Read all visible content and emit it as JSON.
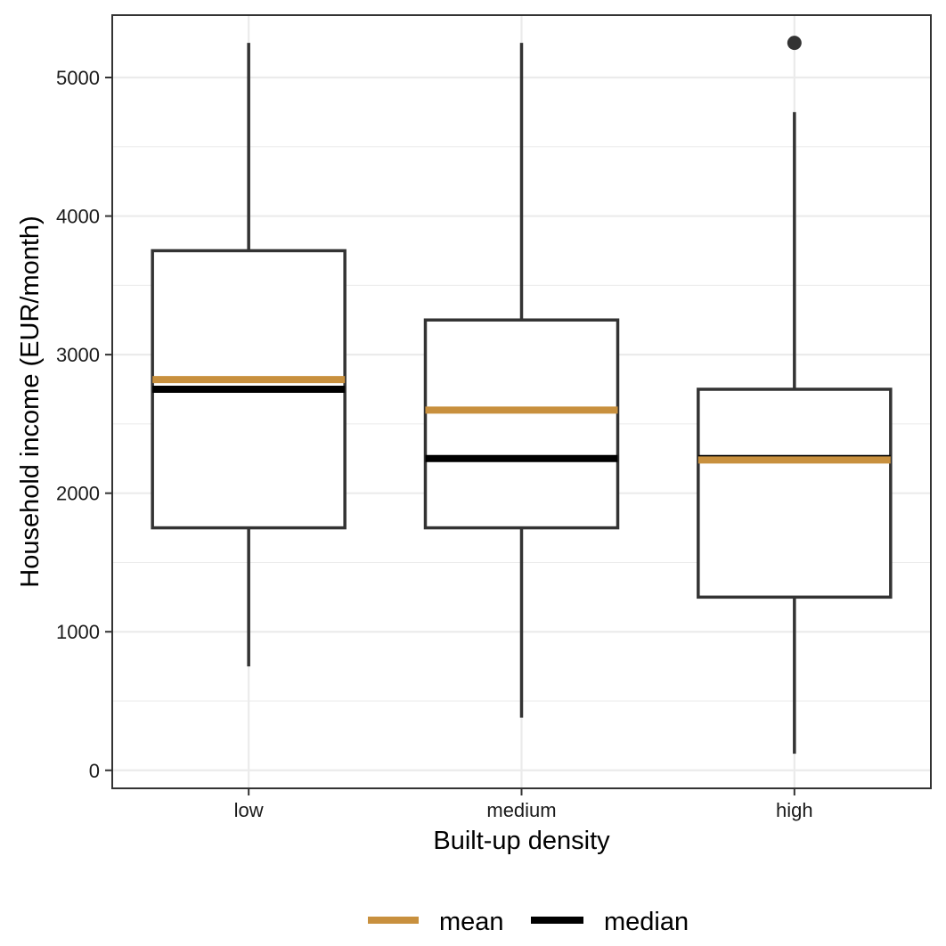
{
  "chart_data": {
    "type": "box",
    "xlabel": "Built-up density",
    "ylabel": "Household income (EUR/month)",
    "categories": [
      "low",
      "medium",
      "high"
    ],
    "ylim": [
      -130,
      5450
    ],
    "y_ticks": [
      0,
      1000,
      2000,
      3000,
      4000,
      5000
    ],
    "grid": true,
    "legend_position": "bottom",
    "boxes": [
      {
        "category": "low",
        "whisker_low": 750,
        "q1": 1750,
        "median": 2750,
        "q3": 3750,
        "whisker_high": 5250,
        "mean": 2820,
        "outliers": []
      },
      {
        "category": "medium",
        "whisker_low": 380,
        "q1": 1750,
        "median": 2250,
        "q3": 3250,
        "whisker_high": 5250,
        "mean": 2600,
        "outliers": []
      },
      {
        "category": "high",
        "whisker_low": 120,
        "q1": 1250,
        "median": 2250,
        "q3": 2750,
        "whisker_high": 4750,
        "mean": 2240,
        "outliers": [
          5250
        ]
      }
    ],
    "legend": [
      {
        "key": "mean",
        "label": "mean",
        "color": "#C8903E"
      },
      {
        "key": "median",
        "label": "median",
        "color": "#000000"
      }
    ],
    "colors": {
      "box": "#333333",
      "mean": "#C8903E",
      "median": "#000000",
      "grid": "#EBEBEB",
      "panel_border": "#333333"
    }
  }
}
